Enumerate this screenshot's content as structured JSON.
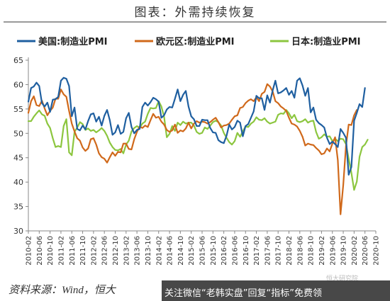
{
  "title": "图表：外需持续恢复",
  "source_text": "资料来源：Wind，恒大",
  "overlay": {
    "text": "关注微信“老韩实盘”回复“指标”免费领",
    "watermark": "恒大研究院"
  },
  "chart_data": {
    "type": "line",
    "title": "图表：外需持续恢复",
    "xlabel": "",
    "ylabel": "",
    "ylim": [
      30,
      65
    ],
    "yticks": [
      30,
      35,
      40,
      45,
      50,
      55,
      60,
      65
    ],
    "grid": false,
    "legend_position": "top",
    "x_start": "2010-02",
    "x_end": "2020-10",
    "x_tick_labels": [
      "2010-02",
      "2010-06",
      "2010-10",
      "2011-02",
      "2011-06",
      "2011-10",
      "2012-02",
      "2012-06",
      "2012-10",
      "2013-02",
      "2013-06",
      "2013-10",
      "2014-02",
      "2014-06",
      "2014-10",
      "2015-02",
      "2015-06",
      "2015-10",
      "2016-02",
      "2016-06",
      "2016-10",
      "2017-02",
      "2017-06",
      "2017-10",
      "2018-02",
      "2018-06",
      "2018-10",
      "2019-02",
      "2019-06",
      "2019-10",
      "2020-02",
      "2020-06",
      "2020-10"
    ],
    "series": [
      {
        "name": "美国:制造业PMI",
        "color": "#1f5fa0",
        "values": [
          56.5,
          59.3,
          59.6,
          60.4,
          59.7,
          56.2,
          55.5,
          56.3,
          54.4,
          56.9,
          57.0,
          57.5,
          60.8,
          61.4,
          61.2,
          59.7,
          53.5,
          55.3,
          50.9,
          50.6,
          51.6,
          50.8,
          52.5,
          53.9,
          54.1,
          52.4,
          53.4,
          51.6,
          53.6,
          54.8,
          52.7,
          49.7,
          50.2,
          51.7,
          49.9,
          50.3,
          53.1,
          54.2,
          51.3,
          50.0,
          50.7,
          50.9,
          55.4,
          56.3,
          55.7,
          56.4,
          57.3,
          57.0,
          56.5,
          53.2,
          53.7,
          54.9,
          55.4,
          55.3,
          57.1,
          59.0,
          56.6,
          57.9,
          58.7,
          55.5,
          53.5,
          52.9,
          51.5,
          51.5,
          52.8,
          52.7,
          52.7,
          51.1,
          50.2,
          50.1,
          48.6,
          48.2,
          48.0,
          49.5,
          51.8,
          50.8,
          51.3,
          52.6,
          52.2,
          49.4,
          51.5,
          51.9,
          53.2,
          54.5,
          57.7,
          57.2,
          57.2,
          54.8,
          57.8,
          56.3,
          58.8,
          60.8,
          58.2,
          58.4,
          58.8,
          59.3,
          57.9,
          58.7,
          57.3,
          60.8,
          61.3,
          59.8,
          57.7,
          59.3,
          54.3,
          55.3,
          52.8,
          52.1,
          51.7,
          51.2,
          49.1,
          47.8,
          48.3,
          47.8,
          47.2,
          50.9,
          50.1,
          49.1,
          41.5,
          43.1,
          52.6,
          54.2,
          56.0,
          55.4,
          59.3
        ]
      },
      {
        "name": "欧元区:制造业PMI",
        "color": "#d0691b",
        "values": [
          54.2,
          56.6,
          57.6,
          55.8,
          55.6,
          56.7,
          55.1,
          53.7,
          54.6,
          55.3,
          57.1,
          57.1,
          59.0,
          58.0,
          57.5,
          54.6,
          52.0,
          50.4,
          49.0,
          48.5,
          47.1,
          46.4,
          46.9,
          48.8,
          49.0,
          47.7,
          45.9,
          45.1,
          44.8,
          44.0,
          45.1,
          46.1,
          45.4,
          46.2,
          46.1,
          47.9,
          47.9,
          46.8,
          46.7,
          48.8,
          50.3,
          51.4,
          51.1,
          51.6,
          51.3,
          52.7,
          54.0,
          53.2,
          53.4,
          52.4,
          51.8,
          50.7,
          50.3,
          50.6,
          51.8,
          50.1,
          50.6,
          50.4,
          51.0,
          52.2,
          51.0,
          52.0,
          52.5,
          52.2,
          52.4,
          52.3,
          52.0,
          52.3,
          52.8,
          53.2,
          52.3,
          51.2,
          51.6,
          51.7,
          52.0,
          52.8,
          53.5,
          53.7,
          55.2,
          55.4,
          56.2,
          56.7,
          57.0,
          56.6,
          57.4,
          56.6,
          58.1,
          58.5,
          60.1,
          59.6,
          58.6,
          56.6,
          56.2,
          55.5,
          55.1,
          54.6,
          53.2,
          52.0,
          51.8,
          51.4,
          50.5,
          49.3,
          47.5,
          47.9,
          47.7,
          47.6,
          47.0,
          46.5,
          45.7,
          45.9,
          46.9,
          46.3,
          47.9,
          49.2,
          44.5,
          33.4,
          39.4,
          47.4,
          51.8,
          51.7,
          53.7,
          54.8
        ]
      },
      {
        "name": "日本:制造业PMI",
        "color": "#8cc63f",
        "values": [
          52.5,
          52.5,
          53.4,
          54.1,
          54.7,
          53.9,
          53.6,
          52.0,
          51.1,
          49.0,
          47.2,
          47.4,
          47.2,
          51.5,
          52.9,
          46.1,
          45.5,
          50.3,
          51.2,
          52.3,
          51.9,
          50.7,
          51.0,
          50.5,
          50.7,
          50.2,
          50.6,
          51.1,
          50.5,
          49.5,
          48.1,
          47.2,
          46.6,
          46.5,
          46.8,
          45.9,
          47.7,
          48.5,
          50.4,
          51.1,
          51.5,
          51.1,
          52.0,
          52.4,
          54.0,
          55.2,
          55.1,
          55.2,
          56.6,
          55.5,
          53.4,
          49.2,
          49.9,
          51.5,
          50.5,
          52.2,
          51.7,
          52.4,
          52.0,
          52.2,
          52.2,
          51.6,
          50.3,
          49.9,
          50.1,
          51.2,
          50.9,
          51.6,
          52.3,
          52.6,
          52.3,
          51.6,
          50.1,
          49.1,
          48.2,
          47.7,
          48.4,
          50.1,
          49.3,
          50.4,
          51.4,
          51.3,
          52.0,
          52.4,
          53.3,
          52.8,
          52.7,
          53.1,
          52.4,
          52.0,
          52.2,
          52.4,
          53.8,
          54.1,
          54.0,
          54.8,
          54.1,
          53.1,
          53.8,
          52.5,
          52.3,
          52.5,
          52.9,
          52.2,
          52.5,
          52.6,
          50.3,
          48.9,
          49.2,
          49.8,
          49.3,
          49.4,
          48.4,
          48.9,
          48.4,
          48.9,
          48.8,
          47.8,
          44.8,
          41.9,
          38.4,
          40.1,
          45.2,
          47.2,
          47.7,
          48.7
        ]
      }
    ]
  }
}
